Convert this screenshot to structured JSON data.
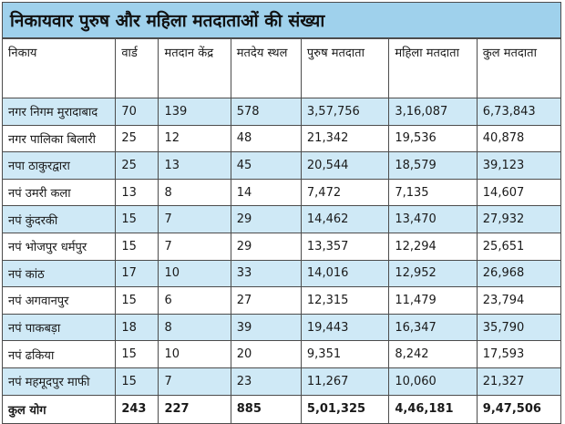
{
  "title": "निकायवार पुरुष और महिला मतदाताओं की संख्या",
  "colors": {
    "title_bg": "#9fd1ec",
    "alt_row_bg": "#cfe9f6",
    "border": "#4d4d4d"
  },
  "headers": [
    "निकाय",
    "वार्ड",
    "मतदान केंद्र",
    "मतदेय स्थल",
    "पुरुष मतदाता",
    "महिला मतदाता",
    "कुल मतदाता"
  ],
  "rows": [
    [
      "नगर निगम मुरादाबाद",
      "70",
      "139",
      "578",
      "3,57,756",
      "3,16,087",
      "6,73,843"
    ],
    [
      "नगर पालिका बिलारी",
      "25",
      "12",
      "48",
      "21,342",
      "19,536",
      "40,878"
    ],
    [
      "नपा ठाकुरद्वारा",
      "25",
      "13",
      "45",
      "20,544",
      "18,579",
      "39,123"
    ],
    [
      "नपं उमरी कला",
      "13",
      "8",
      "14",
      "7,472",
      "7,135",
      "14,607"
    ],
    [
      "नपं कुंदरकी",
      "15",
      "7",
      "29",
      "14,462",
      "13,470",
      "27,932"
    ],
    [
      "नपं भोजपुर धर्मपुर",
      "15",
      "7",
      "29",
      "13,357",
      "12,294",
      "25,651"
    ],
    [
      "नपं कांठ",
      "17",
      "10",
      "33",
      "14,016",
      "12,952",
      "26,968"
    ],
    [
      "नपं अगवानपुर",
      "15",
      "6",
      "27",
      "12,315",
      "11,479",
      "23,794"
    ],
    [
      "नपं पाकबड़ा",
      "18",
      "8",
      "39",
      "19,443",
      "16,347",
      "35,790"
    ],
    [
      "नपं ढकिया",
      "15",
      "10",
      "20",
      "9,351",
      "8,242",
      "17,593"
    ],
    [
      "नपं महमूदपुर माफी",
      "15",
      "7",
      "23",
      "11,267",
      "10,060",
      "21,327"
    ]
  ],
  "total": [
    "कुल योग",
    "243",
    "227",
    "885",
    "5,01,325",
    "4,46,181",
    "9,47,506"
  ]
}
